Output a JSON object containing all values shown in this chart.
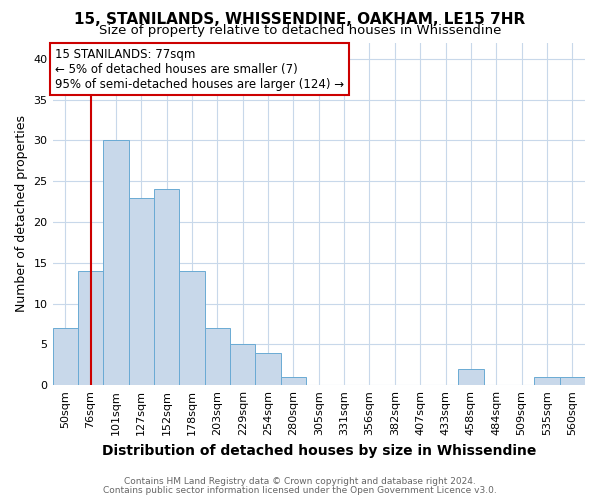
{
  "title1": "15, STANILANDS, WHISSENDINE, OAKHAM, LE15 7HR",
  "title2": "Size of property relative to detached houses in Whissendine",
  "xlabel": "Distribution of detached houses by size in Whissendine",
  "ylabel": "Number of detached properties",
  "categories": [
    "50sqm",
    "76sqm",
    "101sqm",
    "127sqm",
    "152sqm",
    "178sqm",
    "203sqm",
    "229sqm",
    "254sqm",
    "280sqm",
    "305sqm",
    "331sqm",
    "356sqm",
    "382sqm",
    "407sqm",
    "433sqm",
    "458sqm",
    "484sqm",
    "509sqm",
    "535sqm",
    "560sqm"
  ],
  "values": [
    7,
    14,
    30,
    23,
    24,
    14,
    7,
    5,
    4,
    1,
    0,
    0,
    0,
    0,
    0,
    0,
    2,
    0,
    0,
    1,
    1
  ],
  "bar_color": "#c8d8ea",
  "bar_edge_color": "#6aaad4",
  "vline_x": 1,
  "vline_color": "#cc0000",
  "annotation_text": "15 STANILANDS: 77sqm\n← 5% of detached houses are smaller (7)\n95% of semi-detached houses are larger (124) →",
  "annotation_box_color": "#ffffff",
  "annotation_box_edge": "#cc0000",
  "ylim": [
    0,
    42
  ],
  "yticks": [
    0,
    5,
    10,
    15,
    20,
    25,
    30,
    35,
    40
  ],
  "footer1": "Contains HM Land Registry data © Crown copyright and database right 2024.",
  "footer2": "Contains public sector information licensed under the Open Government Licence v3.0.",
  "bg_color": "#ffffff",
  "grid_color": "#c8d8ea",
  "title1_fontsize": 11,
  "title2_fontsize": 9.5,
  "xlabel_fontsize": 10,
  "ylabel_fontsize": 9,
  "tick_fontsize": 8,
  "annot_fontsize": 8.5,
  "footer_fontsize": 6.5
}
